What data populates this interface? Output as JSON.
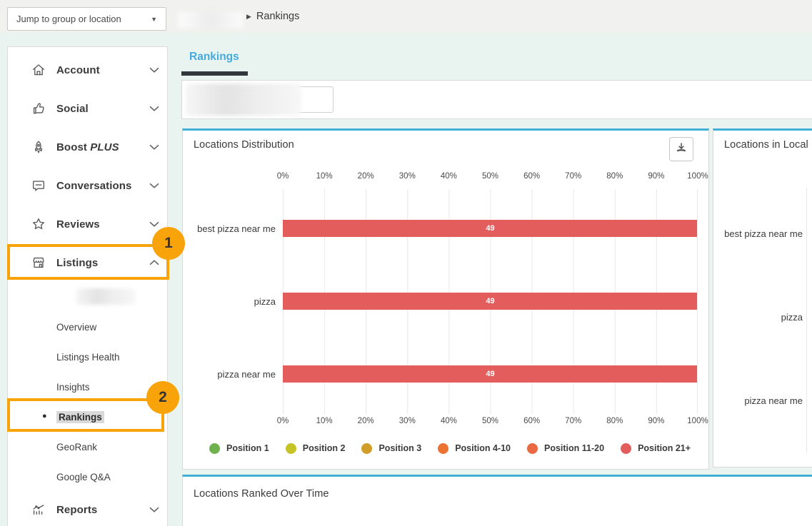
{
  "topbar": {
    "jump_placeholder": "Jump to group or location",
    "dropdown_arrow": "▼",
    "breadcrumb_caret": "▶",
    "breadcrumb_current": "Rankings"
  },
  "sidebar": {
    "items": [
      {
        "icon": "home-icon",
        "label": "Account"
      },
      {
        "icon": "thumbs-up-icon",
        "label": "Social"
      },
      {
        "icon": "rocket-icon",
        "label": "Boost",
        "suffix": "PLUS"
      },
      {
        "icon": "chat-bubble-icon",
        "label": "Conversations"
      },
      {
        "icon": "star-icon",
        "label": "Reviews"
      },
      {
        "icon": "storefront-icon",
        "label": "Listings"
      },
      {
        "icon": "report-chart-icon",
        "label": "Reports"
      }
    ],
    "subitems": [
      "",
      "Overview",
      "Listings Health",
      "Insights",
      "Rankings",
      "GeoRank",
      "Google Q&A"
    ],
    "active_subitem": "Rankings",
    "active_bullet": "●"
  },
  "annotations": {
    "step1": "1",
    "step2": "2",
    "highlight_color": "#f9a30b"
  },
  "main": {
    "tab_label": "Rankings",
    "accent_color": "#41aed6"
  },
  "panels": {
    "distribution_title": "Locations Distribution",
    "local_pack_title": "Locations in Local",
    "over_time_title": "Locations Ranked Over Time"
  },
  "chart_data": {
    "type": "bar",
    "orientation": "horizontal",
    "title": "Locations Distribution",
    "categories": [
      "best pizza near me",
      "pizza",
      "pizza near me"
    ],
    "series": [
      {
        "name": "Position 21+",
        "color": "#e45d5d",
        "values_pct": [
          100,
          100,
          100
        ],
        "counts": [
          49,
          49,
          49
        ]
      }
    ],
    "xlim": [
      0,
      100
    ],
    "x_ticks": [
      "0%",
      "10%",
      "20%",
      "30%",
      "40%",
      "50%",
      "60%",
      "70%",
      "80%",
      "90%",
      "100%"
    ],
    "axis_positions": "top and bottom",
    "grid": true,
    "legend_position": "bottom",
    "legend": [
      {
        "label": "Position 1",
        "color": "#6fb14f"
      },
      {
        "label": "Position 2",
        "color": "#c6c327"
      },
      {
        "label": "Position 3",
        "color": "#cf9d28"
      },
      {
        "label": "Position 4-10",
        "color": "#ec7231"
      },
      {
        "label": "Position 11-20",
        "color": "#ea6842"
      },
      {
        "label": "Position 21+",
        "color": "#e45d5d"
      }
    ],
    "companion_panel": {
      "title": "Locations in Local",
      "categories": [
        "best pizza near me",
        "pizza",
        "pizza near me"
      ]
    }
  }
}
